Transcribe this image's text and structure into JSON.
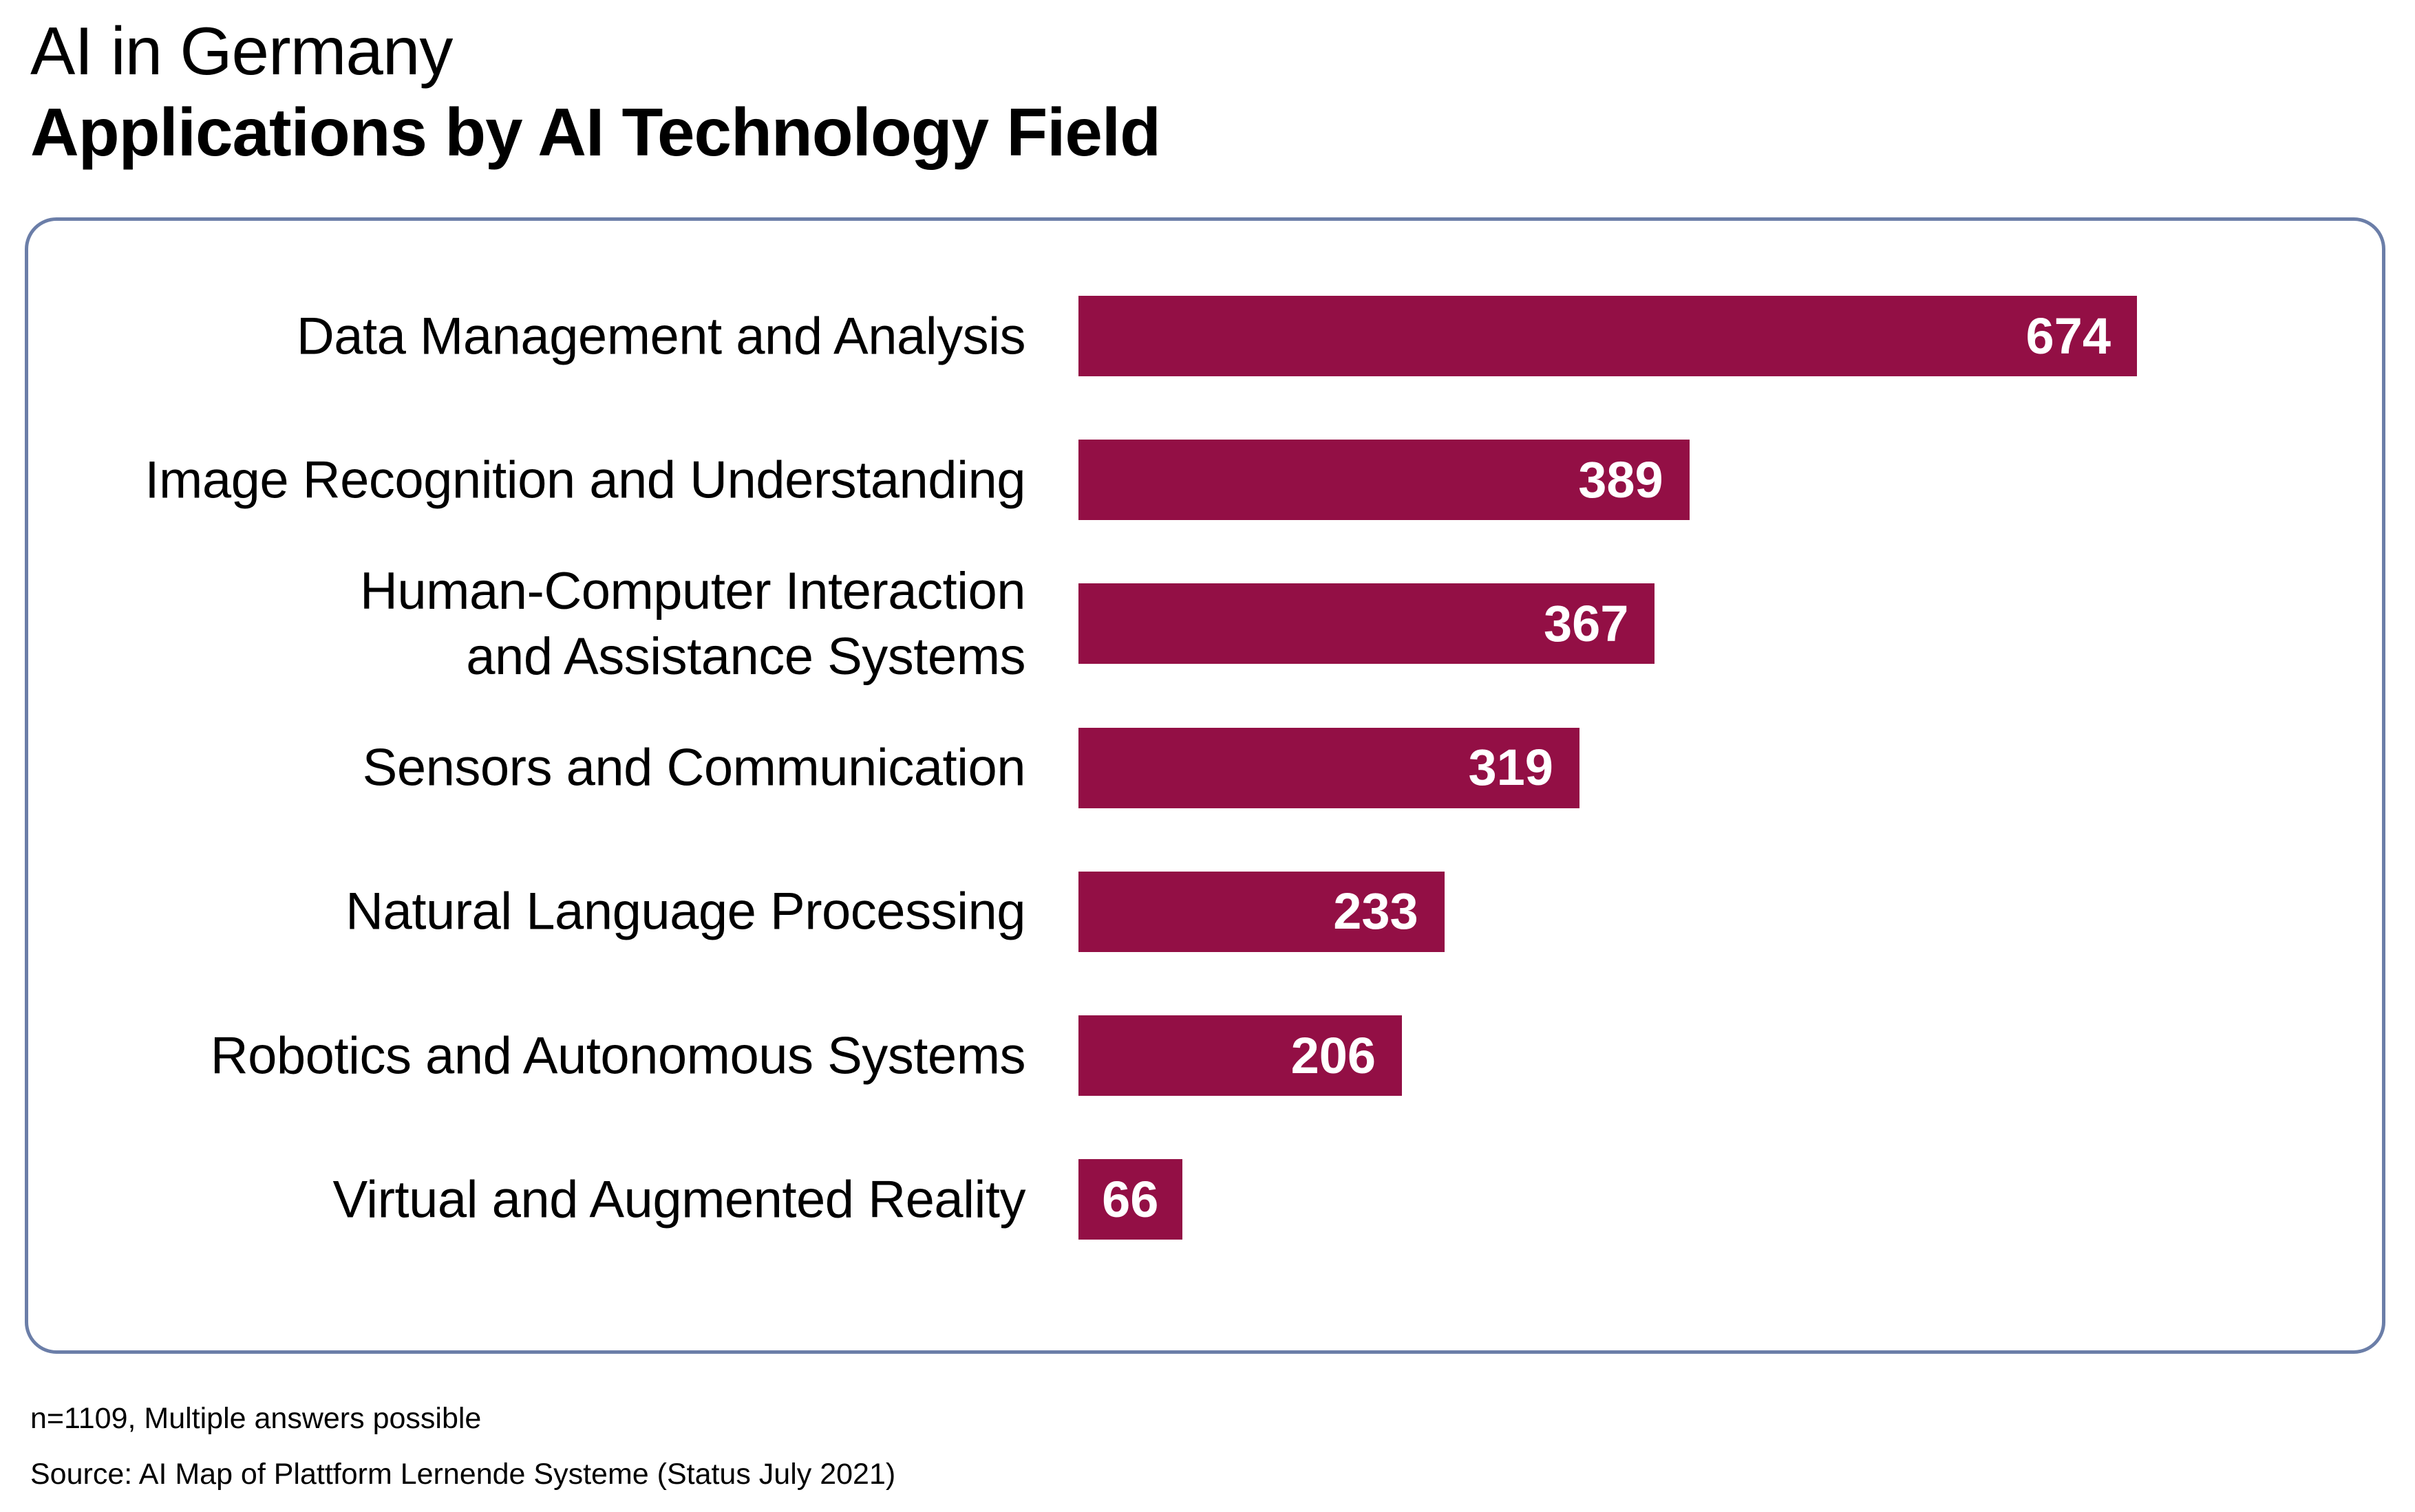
{
  "header": {
    "title": "AI in Germany",
    "subtitle": "Applications by AI Technology Field"
  },
  "colors": {
    "bar": "#930f45",
    "box_border": "#6b7ea8",
    "value_text": "#ffffff",
    "label_text": "#000000"
  },
  "chart_data": {
    "type": "bar",
    "orientation": "horizontal",
    "title": "Applications by AI Technology Field",
    "supertitle": "AI in Germany",
    "categories": [
      "Data Management and Analysis",
      "Image Recognition and Understanding",
      "Human-Computer Interaction\nand Assistance Systems",
      "Sensors and Communication",
      "Natural Language Processing",
      "Robotics and Autonomous Systems",
      "Virtual and Augmented Reality"
    ],
    "values": [
      674,
      389,
      367,
      319,
      233,
      206,
      66
    ],
    "value_labels": [
      "674",
      "389",
      "367",
      "319",
      "233",
      "206",
      "66"
    ],
    "xlabel": "",
    "ylabel": "",
    "xlim": [
      0,
      674
    ],
    "grid": false,
    "legend": "none",
    "sorted": "descending"
  },
  "footer": {
    "note": "n=1109, Multiple answers possible",
    "source": "Source: AI Map of Plattform Lernende Systeme (Status July 2021)"
  }
}
